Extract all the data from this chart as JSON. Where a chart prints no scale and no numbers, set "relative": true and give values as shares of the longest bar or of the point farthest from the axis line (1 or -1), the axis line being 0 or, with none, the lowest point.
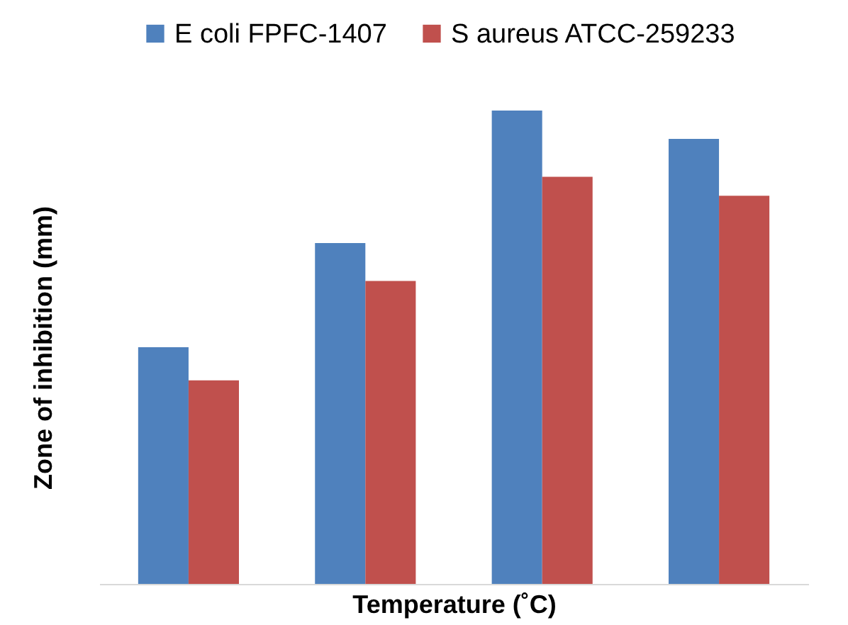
{
  "chart_data": {
    "type": "bar",
    "relative": true,
    "xlabel": "Temperature (˚C)",
    "ylabel": "Zone of inhibition (mm)",
    "categories": [
      null,
      null,
      null,
      null
    ],
    "legend": "top",
    "series": [
      {
        "name": "E coli FPFC-1407",
        "color": "#4f81bd",
        "values": [
          0.5,
          0.72,
          1,
          0.94
        ]
      },
      {
        "name": "S aureus ATCC-259233",
        "color": "#c0504d",
        "values": [
          0.43,
          0.64,
          0.86,
          0.82
        ]
      }
    ]
  }
}
